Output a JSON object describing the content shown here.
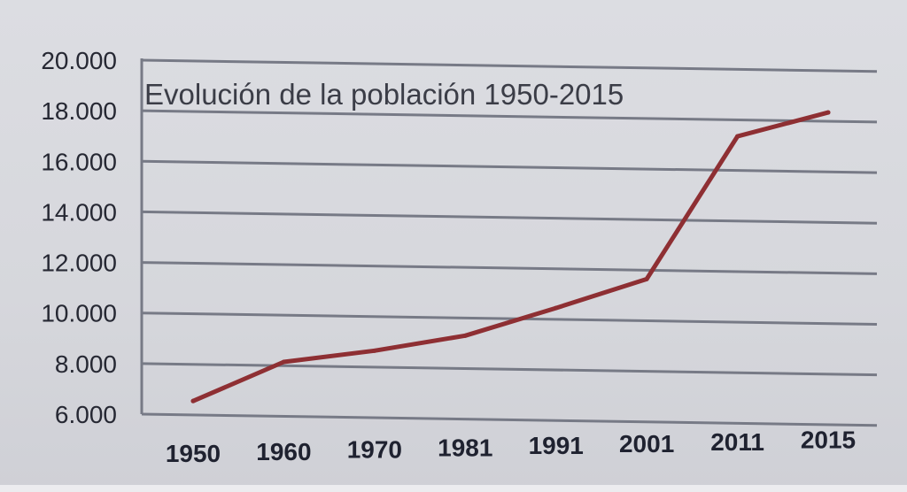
{
  "chart_data": {
    "type": "line",
    "title": "Evolución de la población 1950-2015",
    "categories": [
      "1950",
      "1960",
      "1970",
      "1981",
      "1991",
      "2001",
      "2011",
      "2015"
    ],
    "series": [
      {
        "values": [
          6550,
          8150,
          8650,
          9300,
          10450,
          11650,
          17350,
          18350
        ]
      }
    ],
    "ylim": [
      6000,
      20000
    ],
    "yticks": [
      6000,
      8000,
      10000,
      12000,
      14000,
      16000,
      18000,
      20000
    ],
    "ytick_labels": [
      "6.000",
      "8.000",
      "10.000",
      "12.000",
      "14.000",
      "16.000",
      "18.000",
      "20.000"
    ],
    "xlabel": "",
    "ylabel": "",
    "grid": true,
    "legend": "none",
    "line_color": "#8e2f33"
  }
}
